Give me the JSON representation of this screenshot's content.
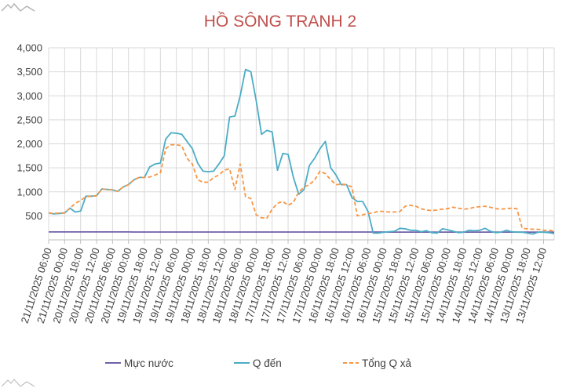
{
  "chart_data": {
    "type": "line",
    "title": "HỒ SÔNG TRANH 2",
    "xlabel": "",
    "ylabel": "",
    "ylim": [
      0,
      4000
    ],
    "yticks": [
      500,
      1000,
      1500,
      2000,
      2500,
      3000,
      3500,
      4000
    ],
    "ytick_labels": [
      "500",
      "1,000",
      "1,500",
      "2,000",
      "2,500",
      "3,000",
      "3,500",
      "4,000"
    ],
    "grid": true,
    "legend_position": "bottom",
    "x_tick_labels": [
      "21/11/2025 06:00",
      "21/11/2025 00:00",
      "20/11/2025 18:00",
      "20/11/2025 12:00",
      "20/11/2025 06:00",
      "20/11/2025 00:00",
      "19/11/2025 18:00",
      "19/11/2025 12:00",
      "19/11/2025 06:00",
      "19/11/2025 00:00",
      "18/11/2025 18:00",
      "18/11/2025 12:00",
      "18/11/2025 06:00",
      "18/11/2025 00:00",
      "17/11/2025 18:00",
      "17/11/2025 12:00",
      "17/11/2025 06:00",
      "17/11/2025 00:00",
      "16/11/2025 18:00",
      "16/11/2025 12:00",
      "16/11/2025 06:00",
      "16/11/2025 00:00",
      "15/11/2025 18:00",
      "15/11/2025 12:00",
      "15/11/2025 06:00",
      "15/11/2025 00:00",
      "14/11/2025 18:00",
      "14/11/2025 12:00",
      "14/11/2025 06:00",
      "14/11/2025 00:00",
      "13/11/2025 18:00",
      "13/11/2025 12:00"
    ],
    "x_index_note_points": 96,
    "series": [
      {
        "name": "Mực nước",
        "color": "#7060a8",
        "style": "solid",
        "values": [
          165,
          165,
          165,
          165,
          165,
          165,
          165,
          165,
          165,
          165,
          165,
          165,
          165,
          165,
          165,
          165,
          164,
          164,
          164,
          164,
          164,
          164,
          164,
          164,
          164,
          164,
          164,
          164,
          164,
          164,
          164,
          164,
          163,
          163,
          163,
          163,
          163,
          163,
          163,
          163,
          163,
          163,
          163,
          163,
          163,
          163,
          163,
          163,
          163,
          163,
          163,
          163,
          163,
          163,
          163,
          163,
          163,
          163,
          163,
          163,
          163,
          163,
          163,
          163,
          162,
          162,
          162,
          162,
          162,
          162,
          162,
          162,
          162,
          162,
          162,
          162,
          162,
          162,
          162,
          162,
          162,
          162,
          162,
          162,
          162,
          162,
          162,
          162,
          162,
          162,
          162,
          162,
          162,
          162,
          162,
          162
        ]
      },
      {
        "name": "Q đến",
        "color": "#4bacc6",
        "style": "solid",
        "values": [
          560,
          540,
          550,
          560,
          660,
          580,
          600,
          910,
          910,
          920,
          1060,
          1050,
          1040,
          1010,
          1100,
          1150,
          1250,
          1300,
          1300,
          1520,
          1580,
          1600,
          2100,
          2230,
          2220,
          2200,
          2050,
          1900,
          1600,
          1430,
          1420,
          1430,
          1580,
          1750,
          2560,
          2580,
          3000,
          3550,
          3500,
          2900,
          2200,
          2280,
          2250,
          1450,
          1800,
          1780,
          1300,
          950,
          1050,
          1550,
          1700,
          1900,
          2050,
          1500,
          1350,
          1150,
          1150,
          880,
          800,
          800,
          600,
          140,
          140,
          160,
          170,
          180,
          240,
          230,
          200,
          200,
          170,
          190,
          150,
          140,
          230,
          210,
          180,
          150,
          160,
          200,
          190,
          200,
          240,
          180,
          150,
          160,
          200,
          170,
          160,
          160,
          140,
          120,
          160,
          160,
          150,
          130
        ]
      },
      {
        "name": "Tổng Q xả",
        "color": "#f79646",
        "style": "dashed",
        "values": [
          560,
          550,
          560,
          560,
          660,
          760,
          820,
          900,
          910,
          920,
          1060,
          1050,
          1040,
          1010,
          1100,
          1150,
          1250,
          1300,
          1300,
          1310,
          1350,
          1400,
          1900,
          1980,
          1980,
          1960,
          1700,
          1580,
          1250,
          1200,
          1200,
          1300,
          1350,
          1450,
          1480,
          1050,
          1580,
          900,
          860,
          520,
          460,
          450,
          640,
          760,
          800,
          720,
          780,
          1000,
          1100,
          1150,
          1250,
          1430,
          1380,
          1250,
          1150,
          1160,
          1150,
          1100,
          500,
          520,
          550,
          560,
          600,
          590,
          580,
          580,
          590,
          700,
          720,
          700,
          650,
          620,
          610,
          620,
          640,
          650,
          680,
          660,
          640,
          650,
          680,
          690,
          700,
          680,
          650,
          640,
          650,
          660,
          650,
          240,
          230,
          220,
          220,
          200,
          200,
          190
        ]
      }
    ]
  }
}
